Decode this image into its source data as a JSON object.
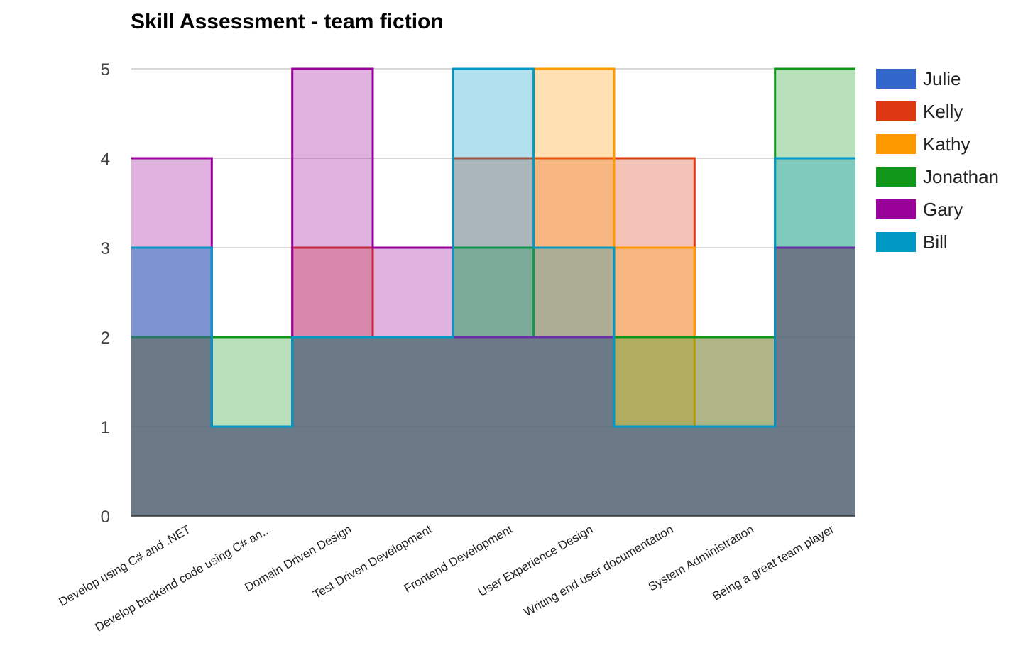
{
  "chart_data": {
    "type": "area",
    "title": "Skill Assessment - team fiction",
    "xlabel": "",
    "ylabel": "",
    "ylim": [
      0,
      5
    ],
    "yticks": [
      "0",
      "1",
      "2",
      "3",
      "4",
      "5"
    ],
    "grid": true,
    "legend_position": "right",
    "categories": [
      "Develop using C# and .NET",
      "Develop backend code using C# an...",
      "Domain Driven Design",
      "Test Driven Development",
      "Frontend Development",
      "User Experience Design",
      "Writing end user documentation",
      "System Administration",
      "Being a great team player"
    ],
    "series": [
      {
        "name": "Julie",
        "color": "#3366cc",
        "values": [
          3,
          1,
          2,
          2,
          2,
          2,
          1,
          1,
          3
        ]
      },
      {
        "name": "Kelly",
        "color": "#dc3912",
        "values": [
          2,
          1,
          3,
          2,
          4,
          4,
          4,
          2,
          3
        ]
      },
      {
        "name": "Kathy",
        "color": "#ff9900",
        "values": [
          2,
          1,
          2,
          2,
          2,
          5,
          3,
          1,
          3
        ]
      },
      {
        "name": "Jonathan",
        "color": "#109618",
        "values": [
          2,
          2,
          2,
          2,
          3,
          2,
          2,
          2,
          5
        ]
      },
      {
        "name": "Gary",
        "color": "#990099",
        "values": [
          4,
          1,
          5,
          3,
          2,
          2,
          1,
          1,
          3
        ]
      },
      {
        "name": "Bill",
        "color": "#0099c6",
        "values": [
          3,
          1,
          2,
          2,
          5,
          3,
          1,
          1,
          4
        ]
      }
    ]
  }
}
